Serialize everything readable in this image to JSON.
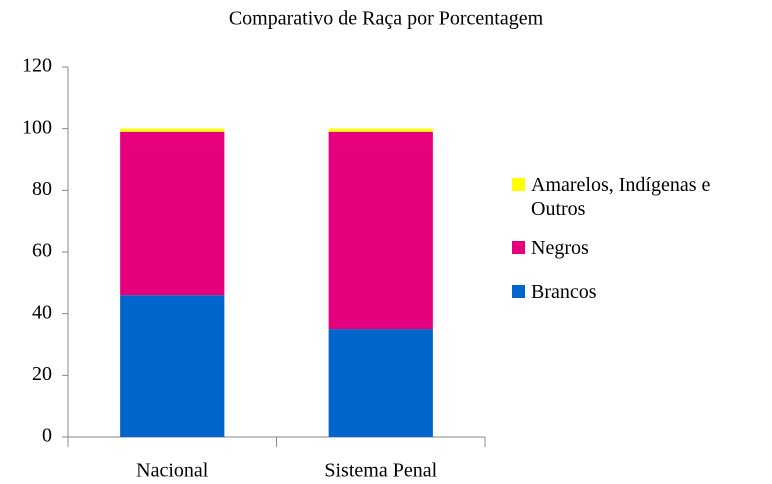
{
  "chart_data": {
    "type": "stacked_bar",
    "title": "Comparativo de Raça por Porcentagem",
    "categories": [
      "Nacional",
      "Sistema Penal"
    ],
    "series": [
      {
        "name": "Brancos",
        "color": "#0066cc",
        "values": [
          46,
          35
        ]
      },
      {
        "name": "Negros",
        "color": "#e6007e",
        "values": [
          53,
          64
        ]
      },
      {
        "name": "Amarelos, Indígenas e Outros",
        "color": "#ffff00",
        "values": [
          1,
          1
        ]
      }
    ],
    "ylim": [
      0,
      120
    ],
    "yticks": [
      0,
      20,
      40,
      60,
      80,
      100,
      120
    ],
    "grid": false,
    "legend": "right"
  }
}
